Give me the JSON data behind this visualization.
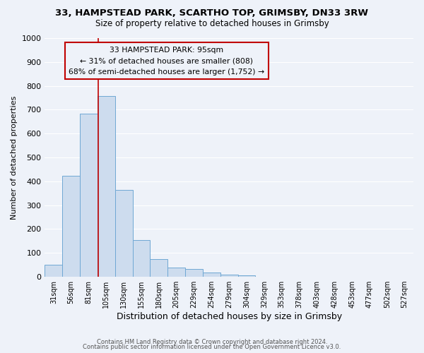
{
  "title1": "33, HAMPSTEAD PARK, SCARTHO TOP, GRIMSBY, DN33 3RW",
  "title2": "Size of property relative to detached houses in Grimsby",
  "xlabel": "Distribution of detached houses by size in Grimsby",
  "ylabel": "Number of detached properties",
  "bar_color": "#cddcee",
  "bar_edge_color": "#6fa8d4",
  "categories": [
    "31sqm",
    "56sqm",
    "81sqm",
    "105sqm",
    "130sqm",
    "155sqm",
    "180sqm",
    "205sqm",
    "229sqm",
    "254sqm",
    "279sqm",
    "304sqm",
    "329sqm",
    "353sqm",
    "378sqm",
    "403sqm",
    "428sqm",
    "453sqm",
    "477sqm",
    "502sqm",
    "527sqm"
  ],
  "values": [
    52,
    423,
    683,
    757,
    363,
    153,
    75,
    40,
    32,
    18,
    10,
    5,
    0,
    0,
    0,
    0,
    0,
    0,
    0,
    0,
    0
  ],
  "ylim": [
    0,
    1000
  ],
  "yticks": [
    0,
    100,
    200,
    300,
    400,
    500,
    600,
    700,
    800,
    900,
    1000
  ],
  "vline_x": 2.56,
  "vline_color": "#c00000",
  "annotation_title": "33 HAMPSTEAD PARK: 95sqm",
  "annotation_line1": "← 31% of detached houses are smaller (808)",
  "annotation_line2": "68% of semi-detached houses are larger (1,752) →",
  "annotation_box_color": "#c00000",
  "footer1": "Contains HM Land Registry data © Crown copyright and database right 2024.",
  "footer2": "Contains public sector information licensed under the Open Government Licence v3.0.",
  "background_color": "#eef2f9",
  "grid_color": "#ffffff"
}
